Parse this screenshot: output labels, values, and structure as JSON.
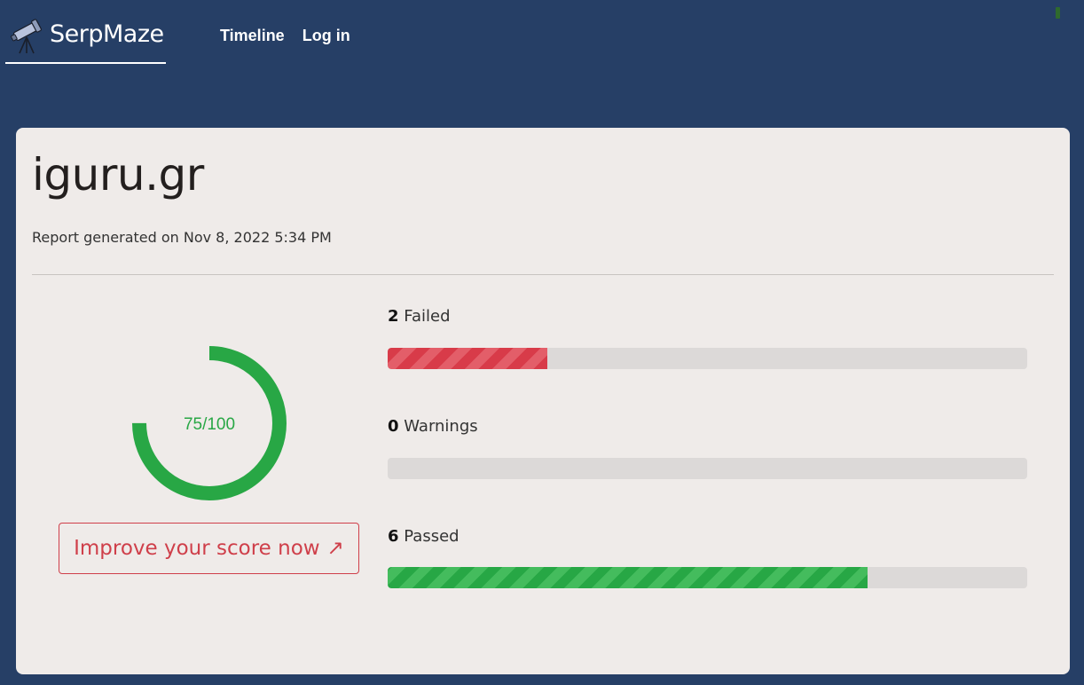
{
  "header": {
    "brand_name": "SerpMaze",
    "brand_icon": "telescope-icon",
    "nav": [
      {
        "label": "Timeline"
      },
      {
        "label": "Log in"
      }
    ]
  },
  "report": {
    "site": "iguru.gr",
    "generated": "Report generated on Nov 8, 2022 5:34 PM",
    "score": {
      "text": "75/100",
      "value": 75,
      "max": 100,
      "color": "#28a745"
    },
    "improve_button": {
      "label": "Improve your score now",
      "icon": "arrow-up-right-icon",
      "glyph": "↗"
    },
    "stats": [
      {
        "count": "2",
        "label": "Failed",
        "fraction": 0.25,
        "color": "#d83b49"
      },
      {
        "count": "0",
        "label": "Warnings",
        "fraction": 0,
        "color": "#e0a800"
      },
      {
        "count": "6",
        "label": "Passed",
        "fraction": 0.75,
        "color": "#28a745"
      }
    ]
  }
}
